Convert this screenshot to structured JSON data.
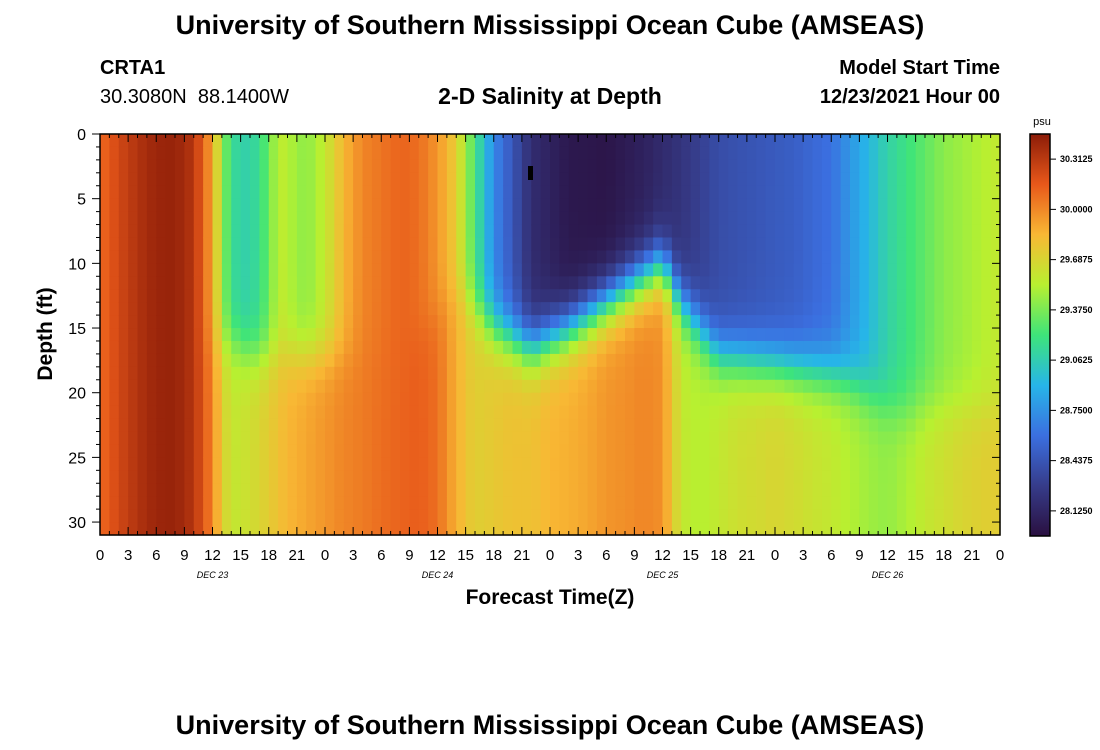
{
  "header": {
    "title_top": "University of Southern Mississippi Ocean Cube (AMSEAS)",
    "title_bottom": "University of Southern Mississippi Ocean Cube (AMSEAS)",
    "station": "CRTA1",
    "coords": "30.3080N  88.1400W",
    "model_start_label": "Model Start Time",
    "model_start_value": "12/23/2021 Hour 00"
  },
  "chart_data": {
    "type": "heatmap",
    "title": "2-D Salinity at Depth",
    "xlabel": "Forecast Time(Z)",
    "ylabel": "Depth (ft)",
    "xlim": [
      0,
      96
    ],
    "ylim": [
      31,
      0
    ],
    "x_tick_labels": [
      "0",
      "3",
      "6",
      "9",
      "12",
      "15",
      "18",
      "21",
      "0",
      "3",
      "6",
      "9",
      "12",
      "15",
      "18",
      "21",
      "0",
      "3",
      "6",
      "9",
      "12",
      "15",
      "18",
      "21",
      "0",
      "3",
      "6",
      "9",
      "12",
      "15",
      "18",
      "21",
      "0"
    ],
    "y_ticks": [
      0,
      5,
      10,
      15,
      20,
      25,
      30
    ],
    "day_labels": [
      {
        "text": "DEC 23",
        "hour": 12
      },
      {
        "text": "DEC 24",
        "hour": 36
      },
      {
        "text": "DEC 25",
        "hour": 60
      },
      {
        "text": "DEC 26",
        "hour": 84
      }
    ],
    "colorbar": {
      "unit": "psu",
      "ticks": [
        "30.3125",
        "30.0000",
        "29.6875",
        "29.3750",
        "29.0625",
        "28.7500",
        "28.4375",
        "28.1250"
      ],
      "range": [
        28.0625,
        30.375
      ]
    },
    "nearsurface_hours": [
      0,
      2,
      4,
      6,
      8,
      10,
      12,
      13,
      14,
      16,
      18,
      19,
      20,
      22,
      24,
      26,
      28,
      30,
      32,
      34,
      36,
      38,
      42,
      46,
      50,
      54,
      58,
      62,
      66,
      70,
      74,
      78,
      80,
      82,
      84,
      86,
      88,
      90,
      92,
      94,
      96
    ],
    "nearsurface_values": [
      30.03,
      30.16,
      30.26,
      30.33,
      30.34,
      30.25,
      29.85,
      29.45,
      29.15,
      29.08,
      29.3,
      29.55,
      29.5,
      29.4,
      29.55,
      29.8,
      29.95,
      30.0,
      30.05,
      30.02,
      29.9,
      29.7,
      28.75,
      28.25,
      28.12,
      28.1,
      28.18,
      28.3,
      28.45,
      28.5,
      28.55,
      28.65,
      28.8,
      28.95,
      29.1,
      29.2,
      29.3,
      29.4,
      29.45,
      29.5,
      29.55
    ],
    "bottom_hours": [
      0,
      2,
      4,
      6,
      8,
      10,
      12,
      13,
      14,
      16,
      18,
      20,
      22,
      24,
      26,
      28,
      30,
      32,
      34,
      36,
      38,
      40,
      44,
      46,
      48,
      50,
      52,
      54,
      56,
      58,
      60,
      62,
      64,
      66,
      68,
      70,
      72,
      74,
      76,
      78,
      80,
      82,
      84,
      86,
      88,
      90,
      92,
      94,
      96
    ],
    "bottom_values": [
      30.03,
      30.16,
      30.26,
      30.33,
      30.34,
      30.25,
      29.95,
      29.7,
      29.55,
      29.6,
      29.7,
      29.8,
      29.85,
      29.9,
      29.95,
      29.98,
      30.02,
      30.05,
      30.07,
      30.02,
      29.82,
      29.68,
      29.75,
      29.75,
      29.8,
      29.82,
      29.85,
      29.9,
      29.92,
      29.95,
      29.92,
      29.55,
      29.5,
      29.55,
      29.6,
      29.62,
      29.65,
      29.62,
      29.58,
      29.55,
      29.5,
      29.45,
      29.42,
      29.48,
      29.55,
      29.6,
      29.65,
      29.68,
      29.7
    ],
    "interface_hours": [
      0,
      14,
      16,
      20,
      24,
      28,
      32,
      38,
      42,
      46,
      50,
      54,
      60,
      62,
      66,
      70,
      74,
      78,
      80,
      82,
      84,
      86,
      88,
      96
    ],
    "interface_depths": [
      17,
      16,
      17,
      17,
      17,
      17,
      17,
      12,
      15,
      16.5,
      15,
      13,
      10,
      13,
      17,
      17.5,
      18,
      18.5,
      19,
      20,
      21,
      21.5,
      21,
      21
    ]
  }
}
